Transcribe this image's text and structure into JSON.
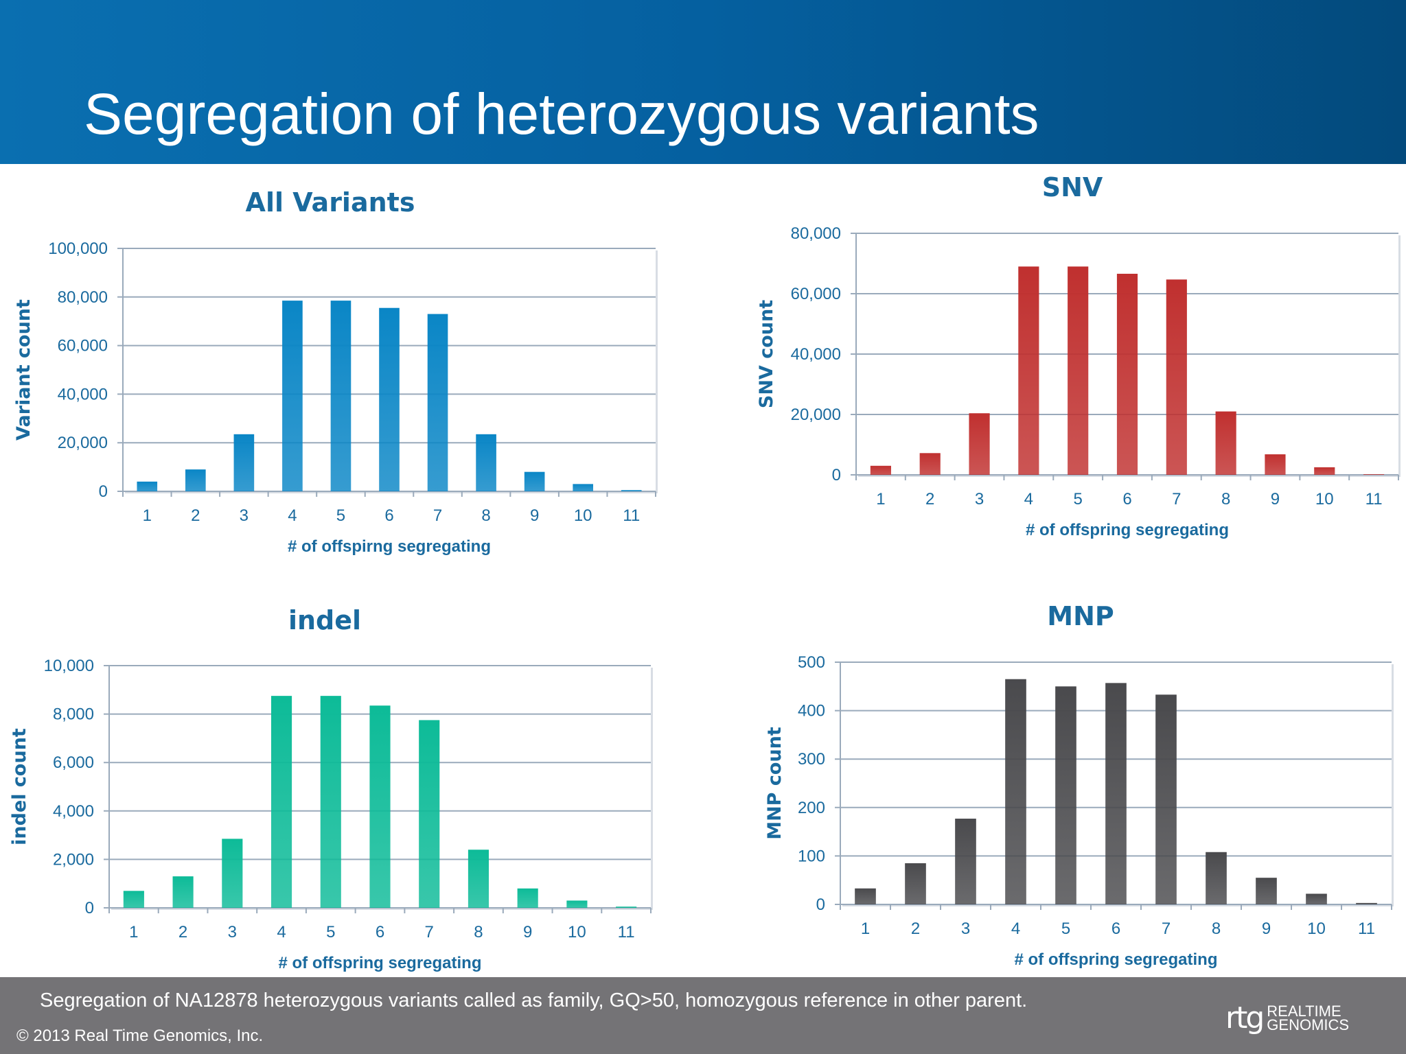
{
  "slide": {
    "title": "Segregation of heterozygous variants",
    "caption": "Segregation of NA12878 heterozygous variants called as family, GQ>50, homozygous reference in other parent.",
    "copyright": "© 2013 Real Time Genomics, Inc.",
    "logo": {
      "mark": "rtg",
      "line1": "REALTIME",
      "line2": "GENOMICS"
    }
  },
  "chart_data": [
    {
      "id": "all",
      "type": "bar",
      "title": "All Variants",
      "xlabel": "# of  offspirng segregating",
      "ylabel": "Variant count",
      "categories": [
        "1",
        "2",
        "3",
        "4",
        "5",
        "6",
        "7",
        "8",
        "9",
        "10",
        "11"
      ],
      "values": [
        4000,
        9000,
        23500,
        78500,
        78500,
        75500,
        73000,
        23500,
        8000,
        3000,
        500
      ],
      "ylim": [
        0,
        100000
      ],
      "yticks": [
        "0",
        "20,000",
        "40,000",
        "60,000",
        "80,000",
        "100,000"
      ],
      "grid": true,
      "color": "#0a86c6"
    },
    {
      "id": "snv",
      "type": "bar",
      "title": "SNV",
      "xlabel": "# of offspring segregating",
      "ylabel": "SNV count",
      "categories": [
        "1",
        "2",
        "3",
        "4",
        "5",
        "6",
        "7",
        "8",
        "9",
        "10",
        "11"
      ],
      "values": [
        3000,
        7200,
        20400,
        69000,
        69000,
        66600,
        64700,
        21000,
        6800,
        2500,
        200
      ],
      "ylim": [
        0,
        80000
      ],
      "yticks": [
        "0",
        "20,000",
        "40,000",
        "60,000",
        "80,000"
      ],
      "grid": true,
      "color": "#c0302f"
    },
    {
      "id": "indel",
      "type": "bar",
      "title": "indel",
      "xlabel": "# of offspring segregating",
      "ylabel": "indel  count",
      "categories": [
        "1",
        "2",
        "3",
        "4",
        "5",
        "6",
        "7",
        "8",
        "9",
        "10",
        "11"
      ],
      "values": [
        700,
        1300,
        2850,
        8750,
        8750,
        8350,
        7750,
        2400,
        800,
        300,
        50
      ],
      "ylim": [
        0,
        10000
      ],
      "yticks": [
        "0",
        "2,000",
        "4,000",
        "6,000",
        "8,000",
        "10,000"
      ],
      "grid": true,
      "color": "#0dbb98"
    },
    {
      "id": "mnp",
      "type": "bar",
      "title": "MNP",
      "xlabel": "# of offspring segregating",
      "ylabel": "MNP count",
      "categories": [
        "1",
        "2",
        "3",
        "4",
        "5",
        "6",
        "7",
        "8",
        "9",
        "10",
        "11"
      ],
      "values": [
        33,
        85,
        177,
        465,
        450,
        457,
        433,
        108,
        55,
        22,
        3
      ],
      "ylim": [
        0,
        500
      ],
      "yticks": [
        "0",
        "100",
        "200",
        "300",
        "400",
        "500"
      ],
      "grid": true,
      "color": "#4a4a4d"
    }
  ]
}
